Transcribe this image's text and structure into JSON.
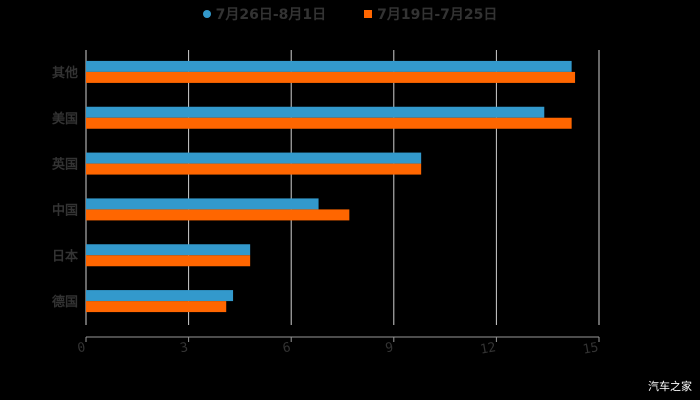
{
  "chart_data": {
    "type": "bar",
    "orientation": "horizontal",
    "title": "",
    "xlabel": "",
    "ylabel": "",
    "categories": [
      "其他",
      "美国",
      "英国",
      "中国",
      "日本",
      "德国"
    ],
    "series": [
      {
        "name": "7月26日-8月1日",
        "color": "#3399cc",
        "values": [
          14.2,
          13.4,
          9.8,
          6.8,
          4.8,
          4.3
        ]
      },
      {
        "name": "7月19日-7月25日",
        "color": "#ff6600",
        "values": [
          14.3,
          14.2,
          9.8,
          7.7,
          4.8,
          4.1
        ]
      }
    ],
    "xlim": [
      0,
      15
    ],
    "xticks": [
      0,
      3,
      6,
      9,
      12,
      15
    ],
    "grid": true,
    "legend_position": "top"
  },
  "legend": {
    "series1": "7月26日-8月1日",
    "series2": "7月19日-7月25日"
  },
  "watermark": "汽车之家"
}
